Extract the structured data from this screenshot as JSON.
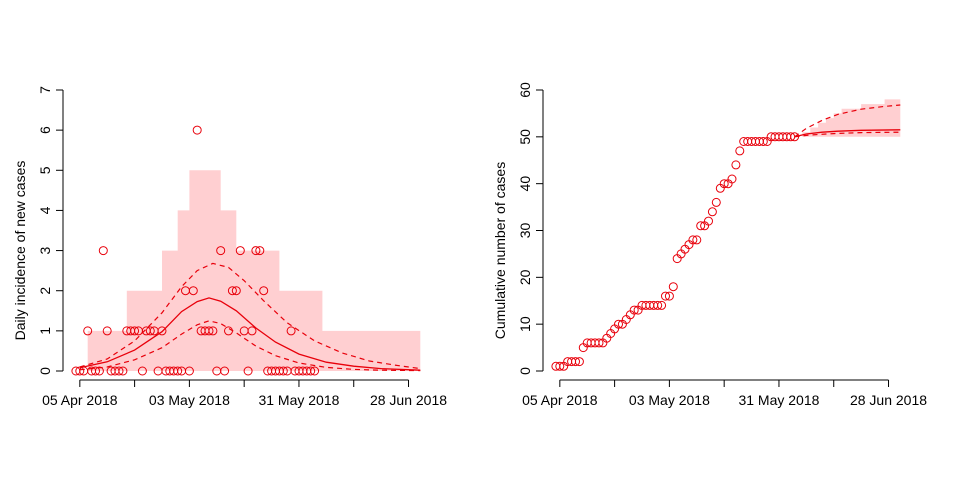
{
  "colors": {
    "series": "#e8000b",
    "band": "#ffcfd1",
    "axis": "#000000"
  },
  "chart_data": [
    {
      "type": "scatter",
      "ylabel": "Daily incidence of new cases",
      "xlim": [
        "2018-04-03",
        "2018-07-04"
      ],
      "ylim": [
        0,
        7
      ],
      "x_ticks": [
        {
          "date": "2018-04-05",
          "label": "05 Apr 2018"
        },
        {
          "date": "2018-04-19",
          "label": ""
        },
        {
          "date": "2018-05-03",
          "label": "03 May 2018"
        },
        {
          "date": "2018-05-17",
          "label": ""
        },
        {
          "date": "2018-05-31",
          "label": "31 May 2018"
        },
        {
          "date": "2018-06-14",
          "label": ""
        },
        {
          "date": "2018-06-28",
          "label": "28 Jun 2018"
        }
      ],
      "y_ticks": [
        {
          "value": 0,
          "label": "0"
        },
        {
          "value": 1,
          "label": "1"
        },
        {
          "value": 2,
          "label": "2"
        },
        {
          "value": 3,
          "label": "3"
        },
        {
          "value": 4,
          "label": "4"
        },
        {
          "value": 5,
          "label": "5"
        },
        {
          "value": 6,
          "label": "6"
        },
        {
          "value": 7,
          "label": "7"
        }
      ],
      "observed": {
        "start": "2018-04-04",
        "values": [
          0,
          0,
          0,
          1,
          0,
          0,
          0,
          3,
          1,
          0,
          0,
          0,
          0,
          1,
          1,
          1,
          1,
          0,
          1,
          1,
          1,
          0,
          1,
          0,
          0,
          0,
          0,
          0,
          2,
          0,
          2,
          6,
          1,
          1,
          1,
          1,
          0,
          3,
          0,
          1,
          2,
          2,
          3,
          1,
          0,
          1,
          3,
          3,
          2,
          0,
          0,
          0,
          0,
          0,
          0,
          1,
          0,
          0,
          0,
          0,
          0,
          0
        ]
      },
      "prediction_band": [
        {
          "date": "2018-04-05",
          "lower": 0,
          "upper": 0
        },
        {
          "date": "2018-04-07",
          "lower": 0,
          "upper": 1
        },
        {
          "date": "2018-04-17",
          "lower": 0,
          "upper": 2
        },
        {
          "date": "2018-04-26",
          "lower": 0,
          "upper": 3
        },
        {
          "date": "2018-04-30",
          "lower": 0,
          "upper": 4
        },
        {
          "date": "2018-05-03",
          "lower": 0,
          "upper": 5
        },
        {
          "date": "2018-05-11",
          "lower": 0,
          "upper": 4
        },
        {
          "date": "2018-05-15",
          "lower": 0,
          "upper": 3
        },
        {
          "date": "2018-05-26",
          "lower": 0,
          "upper": 2
        },
        {
          "date": "2018-06-06",
          "lower": 0,
          "upper": 1
        },
        {
          "date": "2018-07-01",
          "lower": 0,
          "upper": 0
        }
      ],
      "median_curve": [
        {
          "date": "2018-04-05",
          "value": 0.08
        },
        {
          "date": "2018-04-12",
          "value": 0.23
        },
        {
          "date": "2018-04-19",
          "value": 0.52
        },
        {
          "date": "2018-04-26",
          "value": 0.98
        },
        {
          "date": "2018-05-01",
          "value": 1.48
        },
        {
          "date": "2018-05-05",
          "value": 1.73
        },
        {
          "date": "2018-05-08",
          "value": 1.82
        },
        {
          "date": "2018-05-11",
          "value": 1.74
        },
        {
          "date": "2018-05-15",
          "value": 1.5
        },
        {
          "date": "2018-05-20",
          "value": 1.07
        },
        {
          "date": "2018-05-25",
          "value": 0.72
        },
        {
          "date": "2018-05-31",
          "value": 0.42
        },
        {
          "date": "2018-06-07",
          "value": 0.22
        },
        {
          "date": "2018-06-14",
          "value": 0.12
        },
        {
          "date": "2018-06-21",
          "value": 0.06
        },
        {
          "date": "2018-07-01",
          "value": 0.02
        }
      ],
      "upper_curve": [
        {
          "date": "2018-04-05",
          "value": 0.1
        },
        {
          "date": "2018-04-12",
          "value": 0.3
        },
        {
          "date": "2018-04-19",
          "value": 0.75
        },
        {
          "date": "2018-04-26",
          "value": 1.45
        },
        {
          "date": "2018-05-01",
          "value": 2.1
        },
        {
          "date": "2018-05-05",
          "value": 2.5
        },
        {
          "date": "2018-05-09",
          "value": 2.68
        },
        {
          "date": "2018-05-13",
          "value": 2.58
        },
        {
          "date": "2018-05-17",
          "value": 2.25
        },
        {
          "date": "2018-05-22",
          "value": 1.75
        },
        {
          "date": "2018-05-28",
          "value": 1.2
        },
        {
          "date": "2018-06-04",
          "value": 0.75
        },
        {
          "date": "2018-06-11",
          "value": 0.45
        },
        {
          "date": "2018-06-18",
          "value": 0.25
        },
        {
          "date": "2018-06-25",
          "value": 0.14
        },
        {
          "date": "2018-07-01",
          "value": 0.06
        }
      ],
      "lower_curve": [
        {
          "date": "2018-04-05",
          "value": 0.03
        },
        {
          "date": "2018-04-12",
          "value": 0.1
        },
        {
          "date": "2018-04-19",
          "value": 0.28
        },
        {
          "date": "2018-04-26",
          "value": 0.58
        },
        {
          "date": "2018-05-01",
          "value": 0.92
        },
        {
          "date": "2018-05-05",
          "value": 1.15
        },
        {
          "date": "2018-05-08",
          "value": 1.25
        },
        {
          "date": "2018-05-11",
          "value": 1.18
        },
        {
          "date": "2018-05-15",
          "value": 0.95
        },
        {
          "date": "2018-05-20",
          "value": 0.62
        },
        {
          "date": "2018-05-25",
          "value": 0.38
        },
        {
          "date": "2018-05-31",
          "value": 0.2
        },
        {
          "date": "2018-06-07",
          "value": 0.09
        },
        {
          "date": "2018-06-14",
          "value": 0.04
        },
        {
          "date": "2018-06-21",
          "value": 0.02
        },
        {
          "date": "2018-07-01",
          "value": 0.01
        }
      ]
    },
    {
      "type": "scatter",
      "ylabel": "Cumulative number of cases",
      "xlim": [
        "2018-04-03",
        "2018-07-04"
      ],
      "ylim": [
        0,
        60
      ],
      "x_ticks": [
        {
          "date": "2018-04-05",
          "label": "05 Apr 2018"
        },
        {
          "date": "2018-04-19",
          "label": ""
        },
        {
          "date": "2018-05-03",
          "label": "03 May 2018"
        },
        {
          "date": "2018-05-17",
          "label": ""
        },
        {
          "date": "2018-05-31",
          "label": "31 May 2018"
        },
        {
          "date": "2018-06-14",
          "label": ""
        },
        {
          "date": "2018-06-28",
          "label": "28 Jun 2018"
        }
      ],
      "y_ticks": [
        {
          "value": 0,
          "label": "0"
        },
        {
          "value": 10,
          "label": "10"
        },
        {
          "value": 20,
          "label": "20"
        },
        {
          "value": 30,
          "label": "30"
        },
        {
          "value": 40,
          "label": "40"
        },
        {
          "value": 50,
          "label": "50"
        },
        {
          "value": 60,
          "label": "60"
        }
      ],
      "observed": {
        "start": "2018-04-04",
        "values": [
          1,
          1,
          1,
          2,
          2,
          2,
          2,
          5,
          6,
          6,
          6,
          6,
          6,
          7,
          8,
          9,
          10,
          10,
          11,
          12,
          13,
          13,
          14,
          14,
          14,
          14,
          14,
          14,
          16,
          16,
          18,
          24,
          25,
          26,
          27,
          28,
          28,
          31,
          31,
          32,
          34,
          36,
          39,
          40,
          40,
          41,
          44,
          47,
          49,
          49,
          49,
          49,
          49,
          49,
          49,
          50,
          50,
          50,
          50,
          50,
          50,
          50
        ]
      },
      "prediction_band": [
        {
          "date": "2018-06-04",
          "lower": 50,
          "upper": 50
        },
        {
          "date": "2018-06-06",
          "lower": 50,
          "upper": 51
        },
        {
          "date": "2018-06-08",
          "lower": 50,
          "upper": 52
        },
        {
          "date": "2018-06-10",
          "lower": 50,
          "upper": 53
        },
        {
          "date": "2018-06-12",
          "lower": 50,
          "upper": 54
        },
        {
          "date": "2018-06-14",
          "lower": 50,
          "upper": 55
        },
        {
          "date": "2018-06-16",
          "lower": 50,
          "upper": 56
        },
        {
          "date": "2018-06-21",
          "lower": 50,
          "upper": 57
        },
        {
          "date": "2018-06-27",
          "lower": 50,
          "upper": 58
        },
        {
          "date": "2018-07-01",
          "lower": 50,
          "upper": 58
        }
      ],
      "median_curve": [
        {
          "date": "2018-06-04",
          "value": 50.0
        },
        {
          "date": "2018-06-07",
          "value": 50.6
        },
        {
          "date": "2018-06-11",
          "value": 51.0
        },
        {
          "date": "2018-06-15",
          "value": 51.2
        },
        {
          "date": "2018-06-21",
          "value": 51.4
        },
        {
          "date": "2018-07-01",
          "value": 51.5
        }
      ],
      "upper_curve": [
        {
          "date": "2018-06-04",
          "value": 50.0
        },
        {
          "date": "2018-06-07",
          "value": 51.8
        },
        {
          "date": "2018-06-11",
          "value": 53.5
        },
        {
          "date": "2018-06-15",
          "value": 54.8
        },
        {
          "date": "2018-06-21",
          "value": 55.9
        },
        {
          "date": "2018-06-27",
          "value": 56.5
        },
        {
          "date": "2018-07-01",
          "value": 56.8
        }
      ],
      "lower_curve": [
        {
          "date": "2018-06-04",
          "value": 50.0
        },
        {
          "date": "2018-06-08",
          "value": 50.4
        },
        {
          "date": "2018-06-14",
          "value": 50.7
        },
        {
          "date": "2018-06-21",
          "value": 50.9
        },
        {
          "date": "2018-07-01",
          "value": 51.0
        }
      ]
    }
  ]
}
